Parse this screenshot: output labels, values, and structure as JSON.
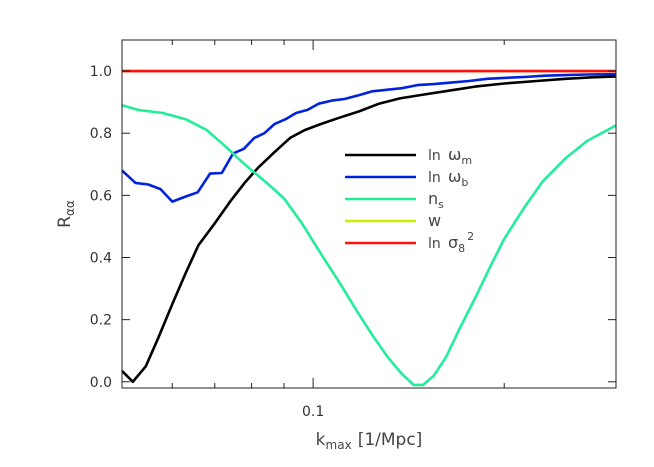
{
  "chart_data": {
    "type": "line",
    "xlabel": {
      "main": "k",
      "sub": "max",
      "unit": "[1/Mpc]"
    },
    "ylabel": {
      "main": "R",
      "sub": "αα"
    },
    "xscale": "log",
    "xlim": [
      0.05,
      0.3
    ],
    "ylim": [
      -0.02,
      1.1
    ],
    "x_ticks": [
      {
        "value": 0.1,
        "label": "0.1"
      }
    ],
    "y_ticks": [
      {
        "value": 0.0,
        "label": "0.0"
      },
      {
        "value": 0.2,
        "label": "0.2"
      },
      {
        "value": 0.4,
        "label": "0.4"
      },
      {
        "value": 0.6,
        "label": "0.6"
      },
      {
        "value": 0.8,
        "label": "0.8"
      },
      {
        "value": 1.0,
        "label": "1.0"
      }
    ],
    "legend_position": "center-right",
    "series": [
      {
        "name": "ln ω_m",
        "legend": {
          "pre": "ln ",
          "sym": "ω",
          "sub": "m",
          "sup": ""
        },
        "color": "#000000",
        "points": [
          [
            0.05,
            0.035
          ],
          [
            0.052,
            0.0
          ],
          [
            0.0545,
            0.05
          ],
          [
            0.057,
            0.14
          ],
          [
            0.06,
            0.25
          ],
          [
            0.063,
            0.35
          ],
          [
            0.066,
            0.44
          ],
          [
            0.07,
            0.51
          ],
          [
            0.074,
            0.58
          ],
          [
            0.078,
            0.64
          ],
          [
            0.082,
            0.69
          ],
          [
            0.087,
            0.74
          ],
          [
            0.092,
            0.785
          ],
          [
            0.097,
            0.81
          ],
          [
            0.103,
            0.83
          ],
          [
            0.11,
            0.85
          ],
          [
            0.118,
            0.87
          ],
          [
            0.127,
            0.895
          ],
          [
            0.137,
            0.912
          ],
          [
            0.15,
            0.925
          ],
          [
            0.165,
            0.938
          ],
          [
            0.18,
            0.95
          ],
          [
            0.2,
            0.96
          ],
          [
            0.225,
            0.968
          ],
          [
            0.25,
            0.975
          ],
          [
            0.275,
            0.98
          ],
          [
            0.3,
            0.983
          ]
        ]
      },
      {
        "name": "ln ω_b",
        "legend": {
          "pre": "ln ",
          "sym": "ω",
          "sub": "b",
          "sup": ""
        },
        "color": "#0022dd",
        "points": [
          [
            0.05,
            0.68
          ],
          [
            0.0525,
            0.64
          ],
          [
            0.055,
            0.635
          ],
          [
            0.0575,
            0.62
          ],
          [
            0.06,
            0.58
          ],
          [
            0.0628,
            0.595
          ],
          [
            0.0658,
            0.61
          ],
          [
            0.0688,
            0.67
          ],
          [
            0.0718,
            0.672
          ],
          [
            0.0748,
            0.735
          ],
          [
            0.0778,
            0.75
          ],
          [
            0.0808,
            0.785
          ],
          [
            0.0838,
            0.8
          ],
          [
            0.087,
            0.83
          ],
          [
            0.0905,
            0.845
          ],
          [
            0.094,
            0.865
          ],
          [
            0.098,
            0.875
          ],
          [
            0.102,
            0.895
          ],
          [
            0.107,
            0.905
          ],
          [
            0.112,
            0.91
          ],
          [
            0.118,
            0.922
          ],
          [
            0.124,
            0.935
          ],
          [
            0.131,
            0.94
          ],
          [
            0.138,
            0.945
          ],
          [
            0.146,
            0.955
          ],
          [
            0.155,
            0.958
          ],
          [
            0.165,
            0.963
          ],
          [
            0.176,
            0.968
          ],
          [
            0.188,
            0.975
          ],
          [
            0.2,
            0.978
          ],
          [
            0.215,
            0.981
          ],
          [
            0.232,
            0.985
          ],
          [
            0.25,
            0.987
          ],
          [
            0.27,
            0.989
          ],
          [
            0.3,
            0.99
          ]
        ]
      },
      {
        "name": "n_s",
        "legend": {
          "pre": "",
          "sym": "n",
          "sub": "s",
          "sup": ""
        },
        "color": "#22ee99",
        "points": [
          [
            0.05,
            0.89
          ],
          [
            0.053,
            0.875
          ],
          [
            0.058,
            0.865
          ],
          [
            0.063,
            0.845
          ],
          [
            0.068,
            0.81
          ],
          [
            0.073,
            0.755
          ],
          [
            0.078,
            0.7
          ],
          [
            0.084,
            0.645
          ],
          [
            0.09,
            0.59
          ],
          [
            0.096,
            0.51
          ],
          [
            0.103,
            0.41
          ],
          [
            0.11,
            0.32
          ],
          [
            0.117,
            0.23
          ],
          [
            0.124,
            0.15
          ],
          [
            0.131,
            0.08
          ],
          [
            0.138,
            0.025
          ],
          [
            0.144,
            -0.01
          ],
          [
            0.149,
            -0.01
          ],
          [
            0.155,
            0.02
          ],
          [
            0.162,
            0.08
          ],
          [
            0.17,
            0.17
          ],
          [
            0.18,
            0.27
          ],
          [
            0.19,
            0.37
          ],
          [
            0.2,
            0.46
          ],
          [
            0.215,
            0.56
          ],
          [
            0.23,
            0.645
          ],
          [
            0.25,
            0.72
          ],
          [
            0.27,
            0.775
          ],
          [
            0.3,
            0.825
          ]
        ]
      },
      {
        "name": "w",
        "legend": {
          "pre": "",
          "sym": "w",
          "sub": "",
          "sup": ""
        },
        "color": "#ccee00",
        "points": [
          [
            0.05,
            1.0
          ],
          [
            0.3,
            1.0
          ]
        ]
      },
      {
        "name": "ln σ_8^2",
        "legend": {
          "pre": "ln ",
          "sym": "σ",
          "sub": "8",
          "sup": "2"
        },
        "color": "#ff1111",
        "points": [
          [
            0.05,
            1.0
          ],
          [
            0.3,
            1.0
          ]
        ]
      }
    ]
  }
}
